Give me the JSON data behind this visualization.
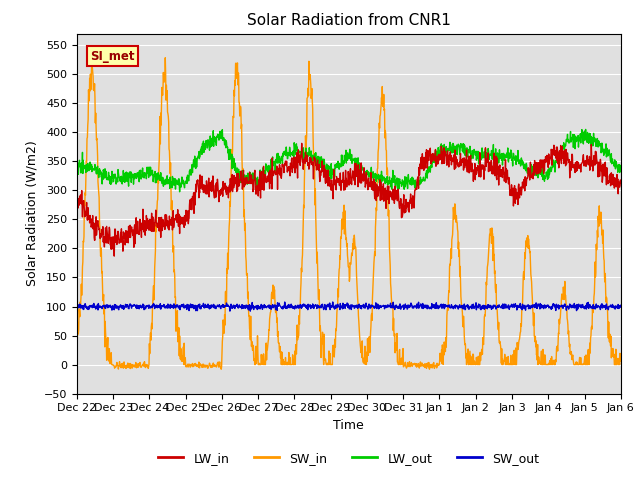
{
  "title": "Solar Radiation from CNR1",
  "xlabel": "Time",
  "ylabel": "Solar Radiation (W/m2)",
  "ylim": [
    -50,
    570
  ],
  "yticks": [
    -50,
    0,
    50,
    100,
    150,
    200,
    250,
    300,
    350,
    400,
    450,
    500,
    550
  ],
  "bg_color": "#e0e0e0",
  "annotation_text": "SI_met",
  "annotation_bg": "#ffffaa",
  "annotation_border": "#cc0000",
  "annotation_text_color": "#990000",
  "lw_in_color": "#cc0000",
  "sw_in_color": "#ff9900",
  "lw_out_color": "#00cc00",
  "sw_out_color": "#0000cc",
  "line_width": 1.0,
  "legend_labels": [
    "LW_in",
    "SW_in",
    "LW_out",
    "SW_out"
  ],
  "x_tick_labels": [
    "Dec 22",
    "Dec 23",
    "Dec 24",
    "Dec 25",
    "Dec 26",
    "Dec 27",
    "Dec 28",
    "Dec 29",
    "Dec 30",
    "Dec 31",
    "Jan 1",
    "Jan 2",
    "Jan 3",
    "Jan 4",
    "Jan 5",
    "Jan 6"
  ],
  "n_days": 15,
  "pts_per_day": 96
}
